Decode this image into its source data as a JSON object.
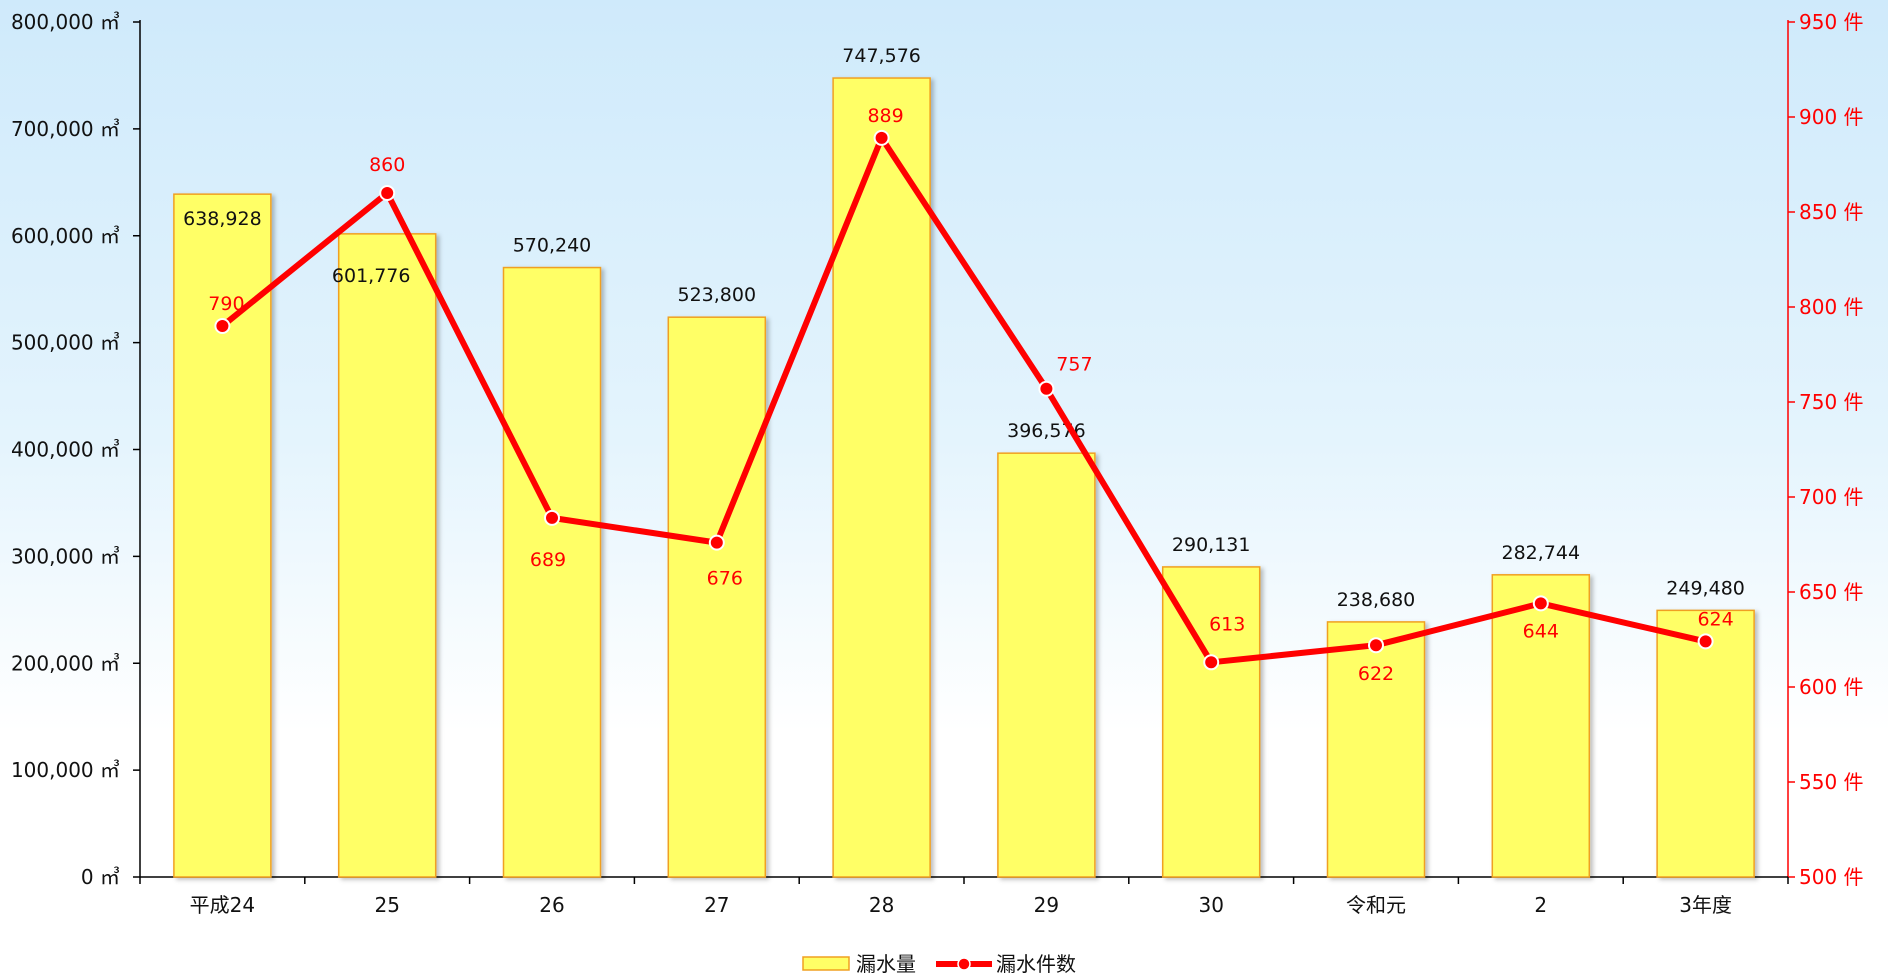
{
  "chart_data": {
    "type": "bar",
    "categories": [
      "平成24",
      "25",
      "26",
      "27",
      "28",
      "29",
      "30",
      "令和元",
      "2",
      "3年度"
    ],
    "series": [
      {
        "name": "漏水量",
        "type": "bar",
        "axis": "left",
        "values": [
          638928,
          601776,
          570240,
          523800,
          747576,
          396576,
          290131,
          238680,
          282744,
          249480
        ],
        "labels": [
          "638,928",
          "601,776",
          "570,240",
          "523,800",
          "747,576",
          "396,576",
          "290,131",
          "238,680",
          "282,744",
          "249,480"
        ]
      },
      {
        "name": "漏水件数",
        "type": "line",
        "axis": "right",
        "values": [
          790,
          860,
          689,
          676,
          889,
          757,
          613,
          622,
          644,
          624
        ],
        "labels": [
          "790",
          "860",
          "689",
          "676",
          "889",
          "757",
          "613",
          "622",
          "644",
          "624"
        ]
      }
    ],
    "left_axis": {
      "min": 0,
      "max": 800000,
      "tick_labels": [
        "0 ㎥",
        "100,000 ㎥",
        "200,000 ㎥",
        "300,000 ㎥",
        "400,000 ㎥",
        "500,000 ㎥",
        "600,000 ㎥",
        "700,000 ㎥",
        "800,000 ㎥"
      ]
    },
    "right_axis": {
      "min": 500,
      "max": 950,
      "tick_labels": [
        "500 件",
        "550 件",
        "600 件",
        "650 件",
        "700 件",
        "750 件",
        "800 件",
        "850 件",
        "900 件",
        "950 件"
      ]
    },
    "grid": false,
    "legend": "bottom",
    "colors": {
      "bar_fill": "#ffff66",
      "bar_stroke": "#f0a020",
      "line": "#ff0000",
      "right_axis": "#ff0000"
    }
  }
}
